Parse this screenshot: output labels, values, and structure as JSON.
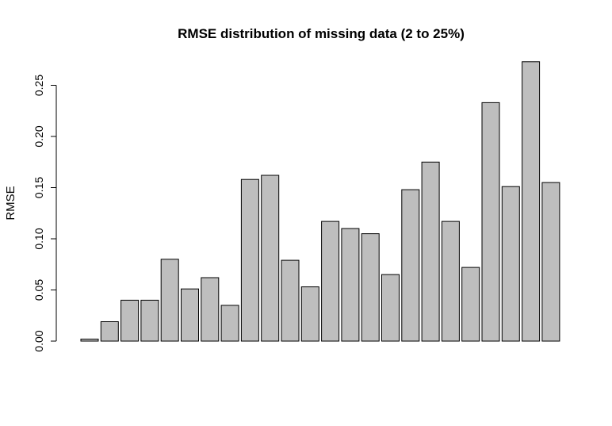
{
  "chart_data": {
    "type": "bar",
    "title": "RMSE distribution of missing data (2 to 25%)",
    "xlabel": "",
    "ylabel": "RMSE",
    "ylim": [
      0,
      0.275
    ],
    "yticks": [
      0.0,
      0.05,
      0.1,
      0.15,
      0.2,
      0.25
    ],
    "ytick_labels": [
      "0.00",
      "0.05",
      "0.10",
      "0.15",
      "0.20",
      "0.25"
    ],
    "grid": false,
    "legend": false,
    "bar_color": "#bebebe",
    "bar_edge_color": "#000000",
    "values": [
      0.002,
      0.019,
      0.04,
      0.04,
      0.08,
      0.051,
      0.062,
      0.035,
      0.158,
      0.162,
      0.079,
      0.053,
      0.117,
      0.11,
      0.105,
      0.065,
      0.148,
      0.175,
      0.117,
      0.072,
      0.233,
      0.151,
      0.273,
      0.155
    ]
  }
}
